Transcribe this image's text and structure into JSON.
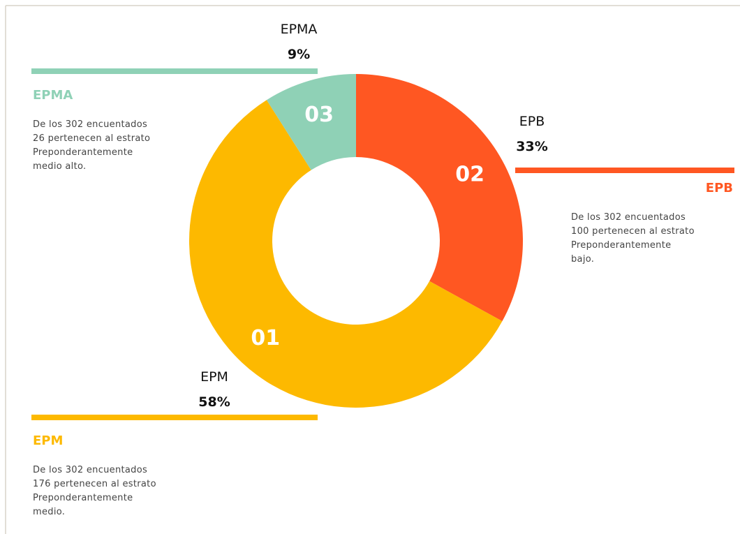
{
  "chart_data": {
    "type": "pie",
    "categories": [
      "EPB",
      "EPM",
      "EPMA"
    ],
    "values": [
      33,
      58,
      9
    ],
    "value_labels": [
      "33%",
      "58%",
      "9%"
    ],
    "segment_labels": [
      "02",
      "01",
      "03"
    ],
    "colors": [
      "#ff5722",
      "#fdb900",
      "#8fd1b6"
    ],
    "donut": true,
    "callouts": [
      {
        "title": "EPB",
        "lines": [
          "De los 302 encuentados",
          "100 pertenecen al estrato",
          "Preponderantemente",
          "bajo."
        ]
      },
      {
        "title": "EPM",
        "lines": [
          "De los 302 encuentados",
          "176 pertenecen al estrato",
          "Preponderantemente",
          "medio."
        ]
      },
      {
        "title": "EPMA",
        "lines": [
          "De los 302 encuentados",
          "26 pertenecen al estrato",
          "Preponderantemente",
          "medio alto."
        ]
      }
    ]
  }
}
